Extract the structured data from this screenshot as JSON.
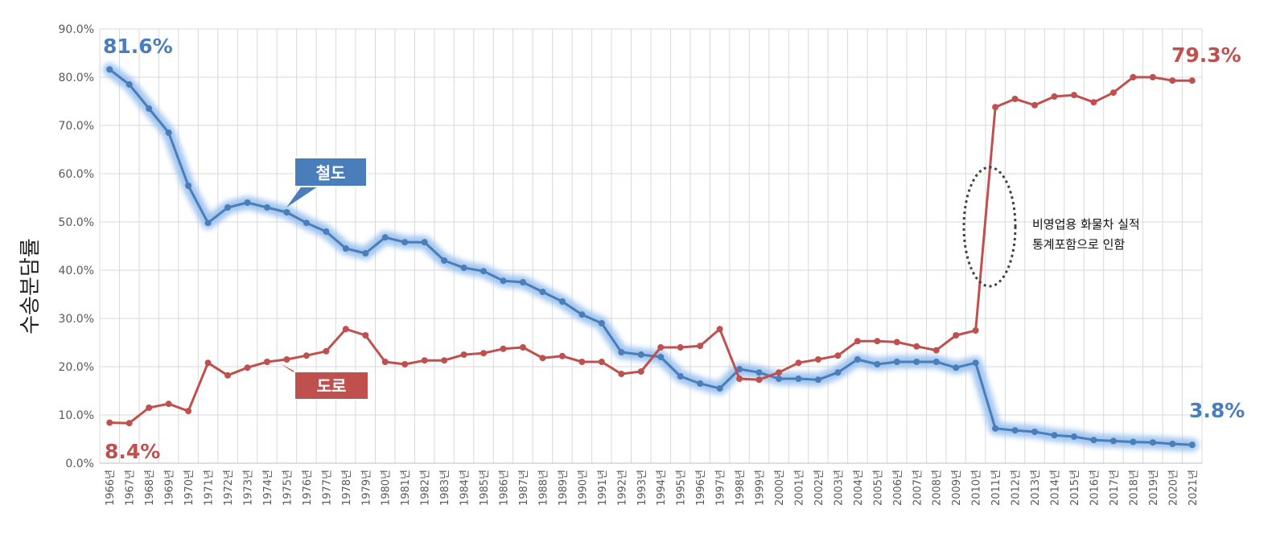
{
  "chart_data": {
    "type": "line",
    "title": "",
    "xlabel": "",
    "ylabel": "수송분담률",
    "ylim": [
      0,
      90
    ],
    "yticks": [
      "0.0%",
      "10.0%",
      "20.0%",
      "30.0%",
      "40.0%",
      "50.0%",
      "60.0%",
      "70.0%",
      "80.0%",
      "90.0%"
    ],
    "grid": true,
    "x": [
      "1966년",
      "1967년",
      "1968년",
      "1969년",
      "1970년",
      "1971년",
      "1972년",
      "1973년",
      "1974년",
      "1975년",
      "1976년",
      "1977년",
      "1978년",
      "1979년",
      "1980년",
      "1981년",
      "1982년",
      "1983년",
      "1984년",
      "1985년",
      "1986년",
      "1987년",
      "1988년",
      "1989년",
      "1990년",
      "1991년",
      "1992년",
      "1993년",
      "1994년",
      "1995년",
      "1996년",
      "1997년",
      "1998년",
      "1999년",
      "2000년",
      "2001년",
      "2002년",
      "2003년",
      "2004년",
      "2005년",
      "2006년",
      "2007년",
      "2008년",
      "2009년",
      "2010년",
      "2011년",
      "2012년",
      "2013년",
      "2014년",
      "2015년",
      "2016년",
      "2017년",
      "2018년",
      "2019년",
      "2020년",
      "2021년"
    ],
    "series": [
      {
        "name": "철도",
        "color": "#4a7ebb",
        "glow": "#9ec3ee",
        "values": [
          81.6,
          78.5,
          73.5,
          68.5,
          57.5,
          49.8,
          53.0,
          54.0,
          53.0,
          52.0,
          49.8,
          48.0,
          44.5,
          43.5,
          46.8,
          45.8,
          45.8,
          42.0,
          40.5,
          39.8,
          37.8,
          37.5,
          35.5,
          33.5,
          30.8,
          29.0,
          23.0,
          22.5,
          22.0,
          18.0,
          16.5,
          15.5,
          19.5,
          18.8,
          17.5,
          17.5,
          17.3,
          18.8,
          21.5,
          20.5,
          21.0,
          21.0,
          21.0,
          19.8,
          20.8,
          7.2,
          6.8,
          6.5,
          5.8,
          5.5,
          4.8,
          4.6,
          4.4,
          4.3,
          4.0,
          3.8
        ]
      },
      {
        "name": "도로",
        "color": "#c0504d",
        "values": [
          8.4,
          8.3,
          11.5,
          12.3,
          10.8,
          20.8,
          18.2,
          19.8,
          21.0,
          21.5,
          22.3,
          23.2,
          27.8,
          26.5,
          21.0,
          20.5,
          21.3,
          21.3,
          22.5,
          22.8,
          23.7,
          24.0,
          21.8,
          22.2,
          21.0,
          21.0,
          18.5,
          19.0,
          24.0,
          24.0,
          24.3,
          27.8,
          17.5,
          17.3,
          18.8,
          20.8,
          21.5,
          22.3,
          25.3,
          25.3,
          25.1,
          24.2,
          23.4,
          26.5,
          27.5,
          73.8,
          75.5,
          74.2,
          76.0,
          76.3,
          74.8,
          76.8,
          80.0,
          80.0,
          79.3,
          79.3
        ]
      }
    ],
    "annotations": {
      "rail_start": "81.6%",
      "rail_end": "3.8%",
      "road_start": "8.4%",
      "road_end": "79.3%",
      "rail_box": "철도",
      "road_box": "도로",
      "note_line1": "비영업용 화물차 실적",
      "note_line2": "통계포함으로 인함"
    }
  }
}
